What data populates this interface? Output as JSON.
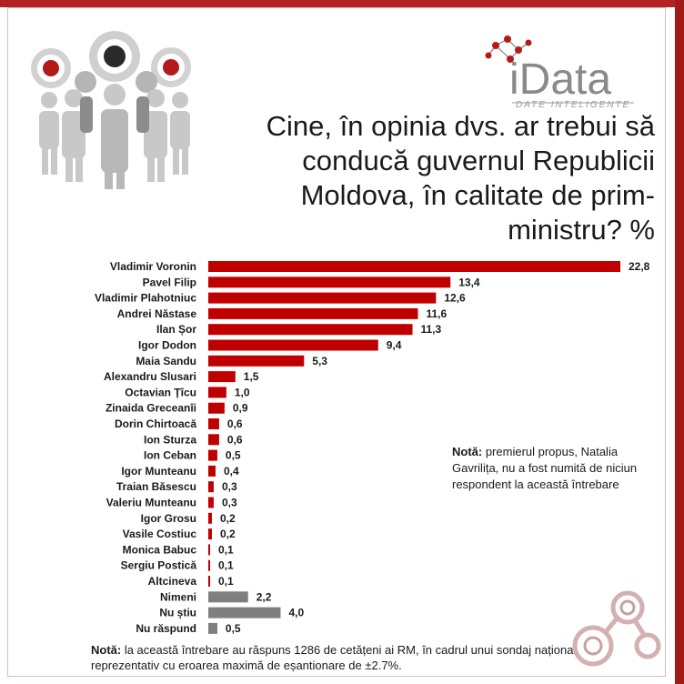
{
  "logo": {
    "text": "iData",
    "tagline": "DATE INTELIGENTE"
  },
  "chart_data": {
    "type": "bar",
    "orientation": "horizontal",
    "title": "Cine, în opinia dvs. ar trebui să conducă guvernul Republicii Moldova, în calitate de prim-ministru? %",
    "categories": [
      "Vladimir Voronin",
      "Pavel Filip",
      "Vladimir Plahotniuc",
      "Andrei Năstase",
      "Ilan Șor",
      "Igor Dodon",
      "Maia Sandu",
      "Alexandru Slusari",
      "Octavian Țîcu",
      "Zinaida Greceanîi",
      "Dorin Chirtoacă",
      "Ion Sturza",
      "Ion Ceban",
      "Igor Munteanu",
      "Traian Băsescu",
      "Valeriu  Munteanu",
      "Igor Grosu",
      "Vasile Costiuc",
      "Monica Babuc",
      "Sergiu Postică",
      "Altcineva",
      "Nimeni",
      "Nu știu",
      "Nu răspund"
    ],
    "values": [
      22.8,
      13.4,
      12.6,
      11.6,
      11.3,
      9.4,
      5.3,
      1.5,
      1.0,
      0.9,
      0.6,
      0.6,
      0.5,
      0.4,
      0.3,
      0.3,
      0.2,
      0.2,
      0.1,
      0.1,
      0.1,
      2.2,
      4.0,
      0.5
    ],
    "value_labels": [
      "22,8",
      "13,4",
      "12,6",
      "11,6",
      "11,3",
      "9,4",
      "5,3",
      "1,5",
      "1,0",
      "0,9",
      "0,6",
      "0,6",
      "0,5",
      "0,4",
      "0,3",
      "0,3",
      "0,2",
      "0,2",
      "0,1",
      "0,1",
      "0,1",
      "2,2",
      "4,0",
      "0,5"
    ],
    "colors": {
      "candidate": "#c00000",
      "non_response": "#7f7f7f"
    },
    "non_response_start_index": 21,
    "xlim": [
      0,
      22.8
    ],
    "grid": false
  },
  "notes": {
    "right_bold": "Notă:",
    "right_text": " premierul propus, Natalia Gavrilița,  nu a fost numită de niciun respondent la această întrebare",
    "bottom_bold": "Notă:",
    "bottom_text": " la această întrebare au răspuns 1286 de cetățeni ai RM, în cadrul unui sondaj național reprezentativ cu eroarea maximă de eșantionare de ±2.7%."
  }
}
